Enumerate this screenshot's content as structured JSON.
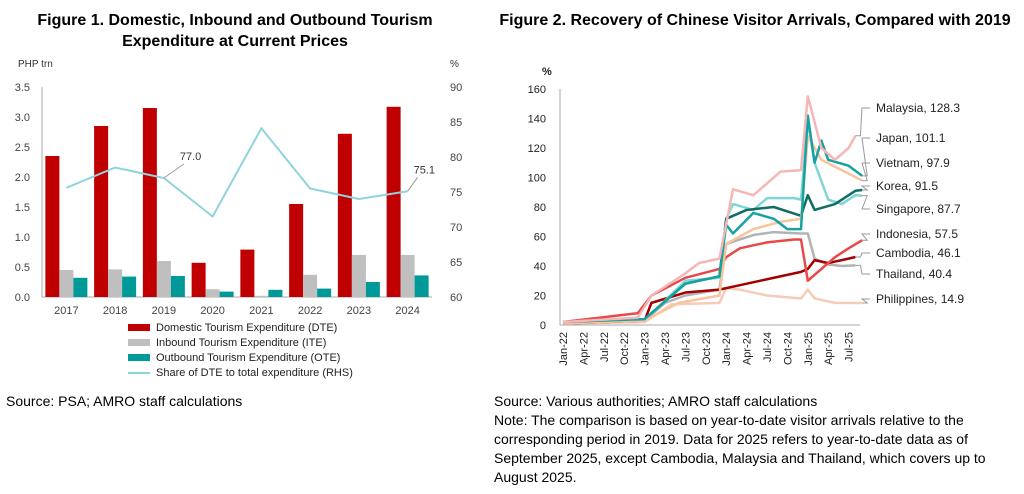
{
  "fig1": {
    "title": "Figure 1. Domestic, Inbound and Outbound Tourism Expenditure at Current Prices",
    "source": "Source: PSA; AMRO staff calculations"
  },
  "fig2": {
    "title": "Figure 2. Recovery of Chinese Visitor Arrivals, Compared with 2019",
    "source": "Source: Various authorities; AMRO staff calculations",
    "note": "Note: The comparison is based on year-to-date visitor arrivals relative to the corresponding period in 2019. Data for 2025 refers to year-to-date data as of September 2025, except Cambodia, Malaysia and Thailand, which covers up to August 2025."
  },
  "chart_data": [
    {
      "type": "bar",
      "ylabel": "PHP trn",
      "y2label": "%",
      "ylim": [
        0,
        3.5
      ],
      "y2lim": [
        60,
        90
      ],
      "yticks": [
        "0.0",
        "0.5",
        "1.0",
        "1.5",
        "2.0",
        "2.5",
        "3.0",
        "3.5"
      ],
      "y2ticks": [
        "60",
        "65",
        "70",
        "75",
        "80",
        "85",
        "90"
      ],
      "categories": [
        "2017",
        "2018",
        "2019",
        "2020",
        "2021",
        "2022",
        "2023",
        "2024"
      ],
      "series": [
        {
          "name": "Domestic Tourism Expenditure (DTE)",
          "kind": "bar",
          "color": "#c00000",
          "values": [
            2.35,
            2.85,
            3.15,
            0.57,
            0.79,
            1.55,
            2.72,
            3.17
          ]
        },
        {
          "name": "Inbound Tourism Expenditure (ITE)",
          "kind": "bar",
          "color": "#bfbfbf",
          "values": [
            0.45,
            0.46,
            0.6,
            0.13,
            0.02,
            0.37,
            0.7,
            0.7
          ]
        },
        {
          "name": "Outbound Tourism Expenditure (OTE)",
          "kind": "bar",
          "color": "#009999",
          "values": [
            0.32,
            0.34,
            0.35,
            0.09,
            0.12,
            0.14,
            0.25,
            0.36
          ]
        },
        {
          "name": "Share of DTE to total expenditure (RHS)",
          "kind": "line",
          "axis": "right",
          "color": "#8fd3dc",
          "values": [
            75.6,
            78.5,
            77.0,
            71.5,
            84.1,
            75.5,
            74.0,
            75.1
          ]
        }
      ],
      "annotations": [
        {
          "category": "2019",
          "text": "77.0"
        },
        {
          "category": "2024",
          "text": "75.1"
        }
      ],
      "legend": "bottom"
    },
    {
      "type": "line",
      "ylabel": "%",
      "ylim": [
        0,
        160
      ],
      "yticks": [
        "0",
        "20",
        "40",
        "60",
        "80",
        "100",
        "120",
        "140",
        "160"
      ],
      "xticks": [
        "Jan-22",
        "Apr-22",
        "Jul-22",
        "Oct-22",
        "Jan-23",
        "Apr-23",
        "Jul-23",
        "Oct-23",
        "Jan-24",
        "Apr-24",
        "Jul-24",
        "Oct-24",
        "Jan-25",
        "Apr-25",
        "Jul-25"
      ],
      "series": [
        {
          "name": "Malaysia",
          "label": "Malaysia, 128.3",
          "color": "#f4b6b6",
          "points": [
            [
              "Jan-22",
              2
            ],
            [
              "Dec-22",
              5
            ],
            [
              "Feb-23",
              20
            ],
            [
              "Jul-23",
              35
            ],
            [
              "Sep-23",
              42
            ],
            [
              "Dec-23",
              45
            ],
            [
              "Feb-24",
              92
            ],
            [
              "May-24",
              88
            ],
            [
              "Sep-24",
              104
            ],
            [
              "Dec-24",
              105
            ],
            [
              "Jan-25",
              155
            ],
            [
              "Mar-25",
              120
            ],
            [
              "May-25",
              112
            ],
            [
              "Jul-25",
              120
            ],
            [
              "Aug-25",
              128.3
            ]
          ]
        },
        {
          "name": "Japan",
          "label": "Japan, 101.1",
          "color": "#17a2a2",
          "points": [
            [
              "Jan-22",
              2
            ],
            [
              "Jan-23",
              4
            ],
            [
              "Jul-23",
              28
            ],
            [
              "Dec-23",
              33
            ],
            [
              "Jan-24",
              68
            ],
            [
              "Feb-24",
              62
            ],
            [
              "May-24",
              76
            ],
            [
              "Aug-24",
              72
            ],
            [
              "Oct-24",
              65
            ],
            [
              "Dec-24",
              65
            ],
            [
              "Jan-25",
              142
            ],
            [
              "Feb-25",
              110
            ],
            [
              "Mar-25",
              125
            ],
            [
              "Apr-25",
              112
            ],
            [
              "Jul-25",
              108
            ],
            [
              "Sep-25",
              101.1
            ]
          ]
        },
        {
          "name": "Vietnam",
          "label": "Vietnam, 97.9",
          "color": "#f7c4a0",
          "points": [
            [
              "Jan-22",
              1
            ],
            [
              "Jan-23",
              3
            ],
            [
              "Jun-23",
              15
            ],
            [
              "Dec-23",
              20
            ],
            [
              "Jan-24",
              55
            ],
            [
              "May-24",
              65
            ],
            [
              "Sep-24",
              70
            ],
            [
              "Dec-24",
              72
            ],
            [
              "Jan-25",
              128
            ],
            [
              "Mar-25",
              112
            ],
            [
              "Jun-25",
              105
            ],
            [
              "Sep-25",
              97.9
            ]
          ]
        },
        {
          "name": "Korea",
          "label": "Korea, 91.5",
          "color": "#0e6e64",
          "points": [
            [
              "Jan-22",
              2
            ],
            [
              "Jan-23",
              4
            ],
            [
              "Jul-23",
              28
            ],
            [
              "Dec-23",
              33
            ],
            [
              "Jan-24",
              72
            ],
            [
              "Apr-24",
              78
            ],
            [
              "Aug-24",
              80
            ],
            [
              "Dec-24",
              74
            ],
            [
              "Jan-25",
              88
            ],
            [
              "Feb-25",
              78
            ],
            [
              "May-25",
              82
            ],
            [
              "Aug-25",
              91
            ],
            [
              "Sep-25",
              91.5
            ]
          ]
        },
        {
          "name": "Singapore",
          "label": "Singapore, 87.7",
          "color": "#7fd6d6",
          "points": [
            [
              "Jan-22",
              2
            ],
            [
              "Jan-23",
              3
            ],
            [
              "Jul-23",
              30
            ],
            [
              "Dec-23",
              32
            ],
            [
              "Jan-24",
              72
            ],
            [
              "Feb-24",
              82
            ],
            [
              "May-24",
              78
            ],
            [
              "Jul-24",
              86
            ],
            [
              "Nov-24",
              86
            ],
            [
              "Dec-24",
              85
            ],
            [
              "Jan-25",
              138
            ],
            [
              "Feb-25",
              110
            ],
            [
              "Apr-25",
              85
            ],
            [
              "Jun-25",
              82
            ],
            [
              "Aug-25",
              88
            ],
            [
              "Sep-25",
              87.7
            ]
          ]
        },
        {
          "name": "Indonesia",
          "label": "Indonesia, 57.5",
          "color": "#e8484a",
          "points": [
            [
              "Jan-22",
              2
            ],
            [
              "Dec-22",
              8
            ],
            [
              "Feb-23",
              20
            ],
            [
              "Jul-23",
              32
            ],
            [
              "Dec-23",
              38
            ],
            [
              "Jan-24",
              46
            ],
            [
              "Mar-24",
              52
            ],
            [
              "Jul-24",
              56
            ],
            [
              "Nov-24",
              58
            ],
            [
              "Dec-24",
              58
            ],
            [
              "Jan-25",
              30
            ],
            [
              "Mar-25",
              38
            ],
            [
              "May-25",
              46
            ],
            [
              "Jul-25",
              52
            ],
            [
              "Sep-25",
              57.5
            ]
          ]
        },
        {
          "name": "Cambodia",
          "label": "Cambodia, 46.1",
          "color": "#a50000",
          "points": [
            [
              "Jan-22",
              1
            ],
            [
              "Jan-23",
              3
            ],
            [
              "Feb-23",
              15
            ],
            [
              "Jul-23",
              22
            ],
            [
              "Dec-23",
              24
            ],
            [
              "Mar-24",
              27
            ],
            [
              "Jul-24",
              31
            ],
            [
              "Nov-24",
              35
            ],
            [
              "Dec-24",
              36
            ],
            [
              "Jan-25",
              38
            ],
            [
              "Feb-25",
              44
            ],
            [
              "Apr-25",
              42
            ],
            [
              "Jul-25",
              45
            ],
            [
              "Aug-25",
              46.1
            ]
          ]
        },
        {
          "name": "Thailand",
          "label": "Thailand, 40.4",
          "color": "#b3b3b3",
          "points": [
            [
              "Jan-22",
              1
            ],
            [
              "Jan-23",
              3
            ],
            [
              "Apr-23",
              15
            ],
            [
              "Jul-23",
              20
            ],
            [
              "Dec-23",
              24
            ],
            [
              "Jan-24",
              55
            ],
            [
              "May-24",
              61
            ],
            [
              "Aug-24",
              63
            ],
            [
              "Dec-24",
              62
            ],
            [
              "Jan-25",
              62
            ],
            [
              "Feb-25",
              45
            ],
            [
              "Apr-25",
              41
            ],
            [
              "Jun-25",
              40
            ],
            [
              "Aug-25",
              40.4
            ]
          ]
        },
        {
          "name": "Philippines",
          "label": "Philippines, 14.9",
          "color": "#f6cbb8",
          "points": [
            [
              "Jan-22",
              1
            ],
            [
              "Jan-23",
              2
            ],
            [
              "May-23",
              14
            ],
            [
              "Dec-23",
              15
            ],
            [
              "Jan-24",
              25
            ],
            [
              "Mar-24",
              24
            ],
            [
              "Jul-24",
              20
            ],
            [
              "Dec-24",
              18
            ],
            [
              "Jan-25",
              24
            ],
            [
              "Feb-25",
              18
            ],
            [
              "May-25",
              15
            ],
            [
              "Sep-25",
              14.9
            ]
          ]
        }
      ],
      "legend": "right"
    }
  ]
}
